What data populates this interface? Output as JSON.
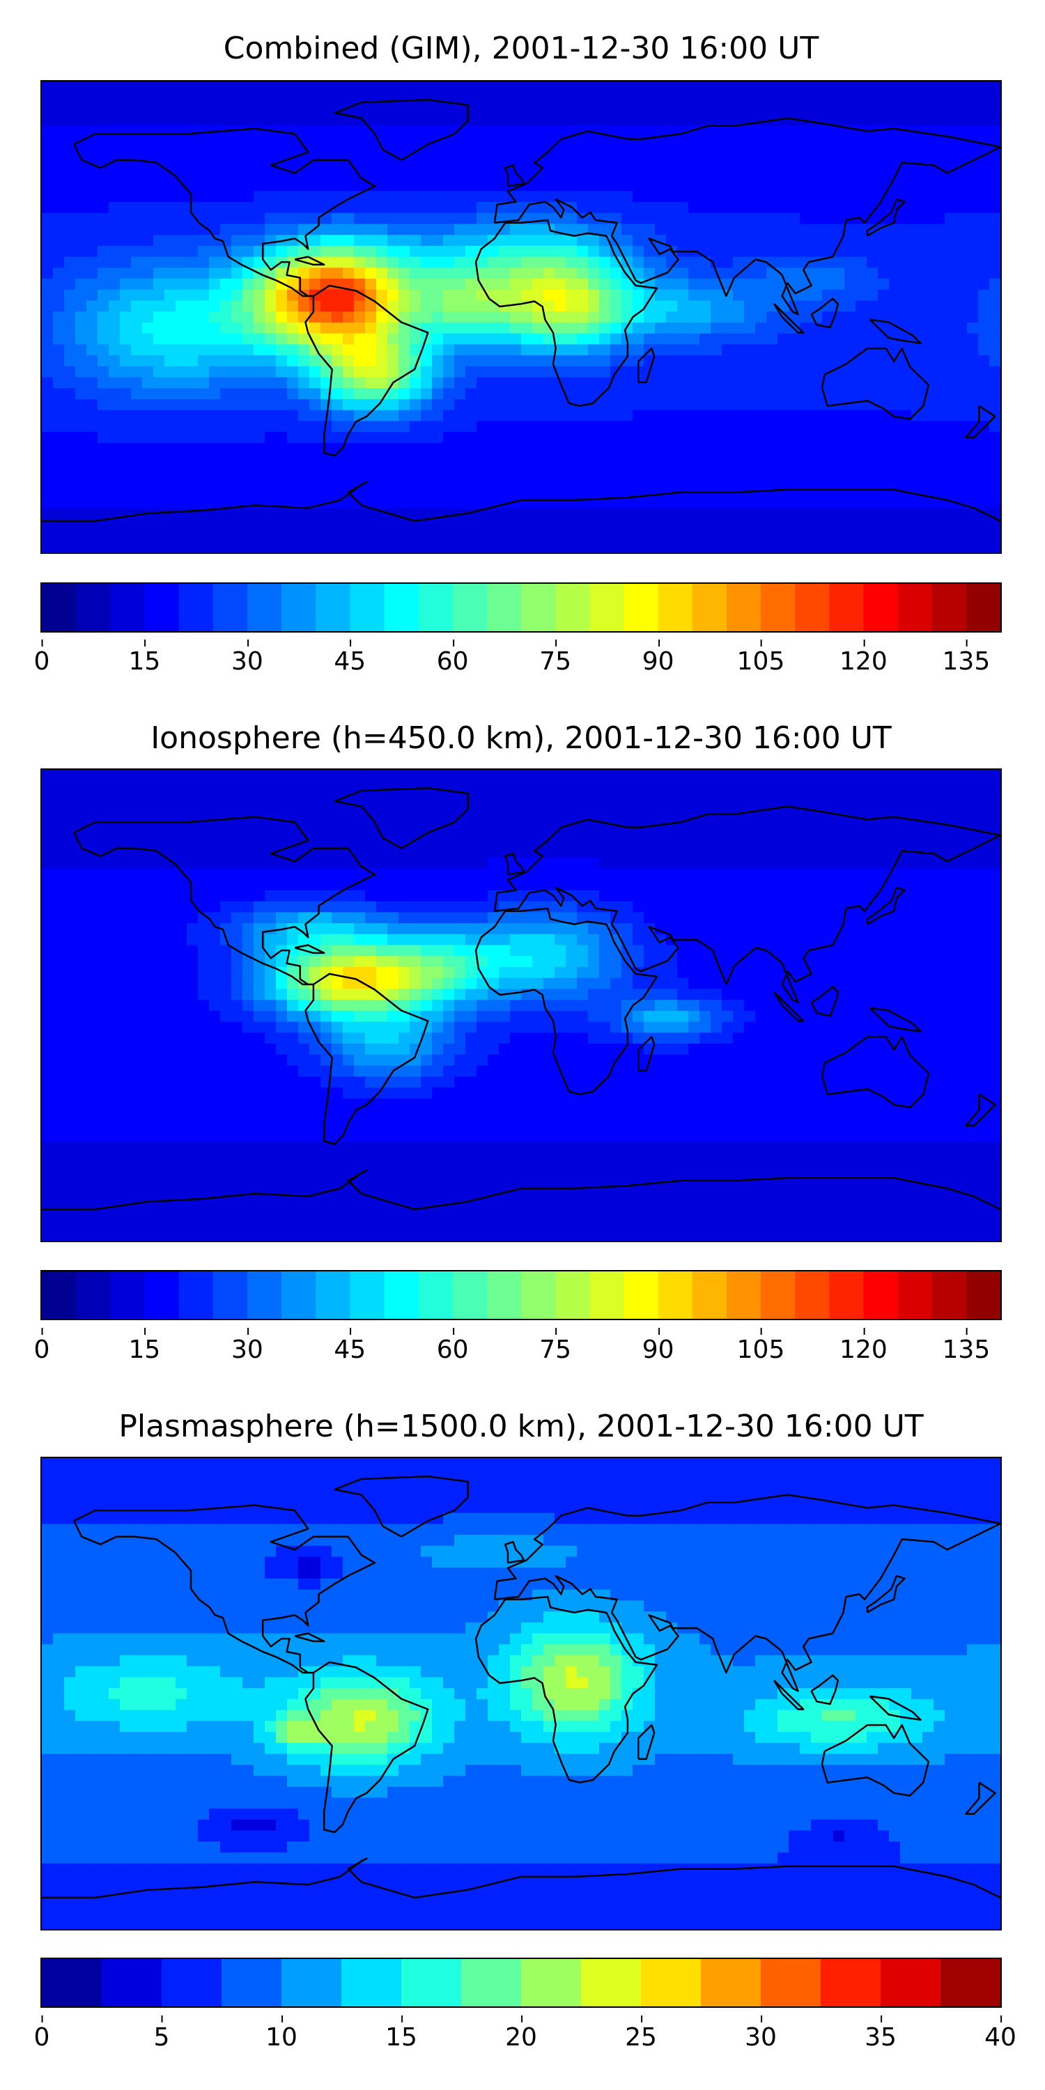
{
  "panels": [
    {
      "title": "Combined (GIM), 2001-12-30 16:00 UT",
      "colorbar": {
        "vmin": 0,
        "vmax": 140,
        "levels": 28,
        "ticks": [
          "0",
          "15",
          "30",
          "45",
          "60",
          "75",
          "90",
          "105",
          "120",
          "135"
        ]
      },
      "field": {
        "base": 22,
        "blobs": [
          {
            "lon": -70,
            "lat": 8,
            "sx": 30,
            "sy": 20,
            "amp": 95
          },
          {
            "lon": -20,
            "lat": 5,
            "sx": 20,
            "sy": 15,
            "amp": 35
          },
          {
            "lon": 15,
            "lat": 5,
            "sx": 25,
            "sy": 18,
            "amp": 55
          },
          {
            "lon": -55,
            "lat": -22,
            "sx": 22,
            "sy": 15,
            "amp": 55
          },
          {
            "lon": -130,
            "lat": -5,
            "sx": 40,
            "sy": 25,
            "amp": 30
          },
          {
            "lon": 60,
            "lat": 3,
            "sx": 35,
            "sy": 12,
            "amp": 20
          },
          {
            "lon": 0,
            "lat": 25,
            "sx": 40,
            "sy": 15,
            "amp": 25
          },
          {
            "lon": 110,
            "lat": 15,
            "sx": 25,
            "sy": 10,
            "amp": 10
          }
        ]
      }
    },
    {
      "title": "Ionosphere  (h=450.0 km), 2001-12-30 16:00 UT",
      "colorbar": {
        "vmin": 0,
        "vmax": 140,
        "levels": 28,
        "ticks": [
          "0",
          "15",
          "30",
          "45",
          "60",
          "75",
          "90",
          "105",
          "120",
          "135"
        ]
      },
      "field": {
        "base": 18,
        "blobs": [
          {
            "lon": -65,
            "lat": 10,
            "sx": 30,
            "sy": 14,
            "amp": 70
          },
          {
            "lon": -80,
            "lat": 30,
            "sx": 30,
            "sy": 10,
            "amp": 25
          },
          {
            "lon": -30,
            "lat": 15,
            "sx": 25,
            "sy": 15,
            "amp": 30
          },
          {
            "lon": 10,
            "lat": 20,
            "sx": 30,
            "sy": 18,
            "amp": 30
          },
          {
            "lon": 55,
            "lat": -5,
            "sx": 20,
            "sy": 8,
            "amp": 25
          },
          {
            "lon": -50,
            "lat": -15,
            "sx": 25,
            "sy": 15,
            "amp": 25
          }
        ]
      }
    },
    {
      "title": "Plasmasphere (h=1500.0 km), 2001-12-30 16:00 UT",
      "colorbar": {
        "vmin": 0,
        "vmax": 40,
        "levels": 16,
        "ticks": [
          "0",
          "5",
          "10",
          "15",
          "20",
          "25",
          "30",
          "35",
          "40"
        ]
      },
      "field": {
        "base": 10,
        "blobs": [
          {
            "lon": -60,
            "lat": -10,
            "sx": 28,
            "sy": 18,
            "amp": 13
          },
          {
            "lon": -85,
            "lat": -15,
            "sx": 10,
            "sy": 6,
            "amp": 6
          },
          {
            "lon": 20,
            "lat": 5,
            "sx": 25,
            "sy": 22,
            "amp": 13
          },
          {
            "lon": 120,
            "lat": -10,
            "sx": 35,
            "sy": 12,
            "amp": 8
          },
          {
            "lon": -140,
            "lat": 0,
            "sx": 35,
            "sy": 15,
            "amp": 6
          },
          {
            "lon": -10,
            "lat": 55,
            "sx": 40,
            "sy": 8,
            "amp": 4
          },
          {
            "lon": -80,
            "lat": 48,
            "sx": 14,
            "sy": 6,
            "amp": -5
          },
          {
            "lon": -100,
            "lat": -50,
            "sx": 18,
            "sy": 6,
            "amp": -5
          },
          {
            "lon": 120,
            "lat": -55,
            "sx": 15,
            "sy": 6,
            "amp": -4
          }
        ]
      }
    }
  ]
}
